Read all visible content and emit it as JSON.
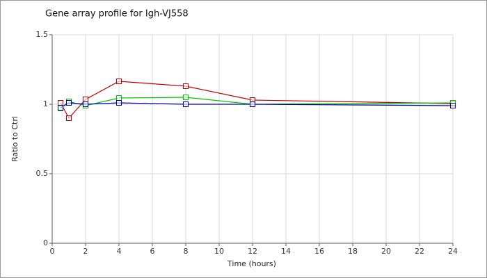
{
  "chart_data": {
    "type": "line",
    "title": "Gene array profile for Igh-VJ558",
    "x_label": "Time (hours)",
    "y_label": "Ratio to Ctrl",
    "x": [
      0.5,
      1,
      2,
      4,
      8,
      12,
      24
    ],
    "series": [
      {
        "color": "#c00000",
        "values": [
          1.01,
          0.9,
          1.035,
          1.165,
          1.13,
          1.03,
          1.005
        ]
      },
      {
        "color": "#00c800",
        "values": [
          0.97,
          1.02,
          0.99,
          1.045,
          1.05,
          1.0,
          1.01
        ]
      },
      {
        "color": "#0000b0",
        "values": [
          0.975,
          1.01,
          1.0,
          1.01,
          1.0,
          1.0,
          0.99
        ]
      }
    ],
    "xlim": [
      0,
      24
    ],
    "xticks": [
      0,
      2,
      4,
      6,
      8,
      10,
      12,
      14,
      16,
      18,
      20,
      22,
      24
    ],
    "ylim": [
      0,
      1.5
    ],
    "yticks": [
      0,
      0.5,
      1,
      1.5
    ],
    "grid": true
  }
}
